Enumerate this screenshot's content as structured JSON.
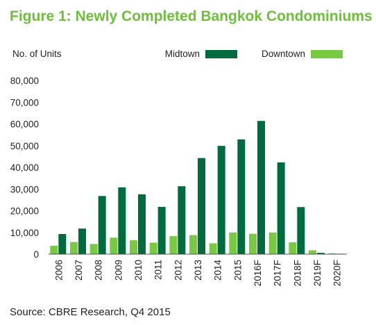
{
  "colors": {
    "title": "#6dbf3a",
    "midtown": "#006b3e",
    "downtown": "#7ac943"
  },
  "chart_data": {
    "type": "bar",
    "title": "Figure 1: Newly Completed Bangkok Condominiums",
    "ylabel": "No. of Units",
    "xlabel": "",
    "categories": [
      "2006",
      "2007",
      "2008",
      "2009",
      "2010",
      "2011",
      "2012",
      "2013",
      "2014",
      "2015",
      "2016F",
      "2017F",
      "2018F",
      "2019F",
      "2020F"
    ],
    "series": [
      {
        "name": "Midtown",
        "values": [
          9300,
          11800,
          26800,
          30800,
          27600,
          21800,
          31300,
          44300,
          49900,
          52900,
          61400,
          42300,
          21700,
          600,
          200
        ]
      },
      {
        "name": "Downtown",
        "values": [
          3900,
          5600,
          4700,
          7600,
          6400,
          5300,
          8300,
          8800,
          5000,
          10000,
          9400,
          10000,
          5500,
          1800,
          400
        ]
      }
    ],
    "ylim": [
      0,
      80000
    ],
    "yticks": [
      0,
      10000,
      20000,
      30000,
      40000,
      50000,
      60000,
      70000,
      80000
    ],
    "ytick_labels": [
      "0",
      "10,000",
      "20,000",
      "30,000",
      "40,000",
      "50,000",
      "60,000",
      "70,000",
      "80,000"
    ],
    "legend_position": "top",
    "grid": false
  },
  "source": "Source: CBRE Research, Q4 2015"
}
